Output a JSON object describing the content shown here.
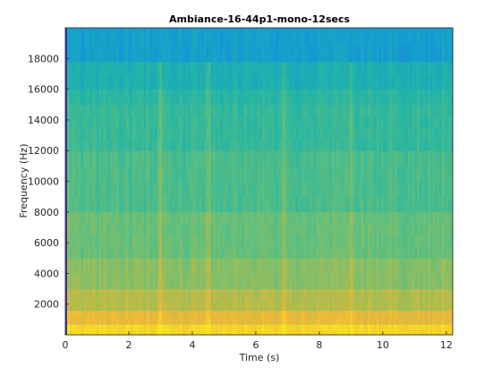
{
  "chart_data": {
    "type": "heatmap",
    "title": "Ambiance-16-44p1-mono-12secs",
    "xlabel": "Time (s)",
    "ylabel": "Frequency (Hz)",
    "xlim": [
      0,
      12.2
    ],
    "ylim": [
      0,
      20000
    ],
    "x_ticks": [
      0,
      2,
      4,
      6,
      8,
      10,
      12
    ],
    "y_ticks": [
      2000,
      4000,
      6000,
      8000,
      10000,
      12000,
      14000,
      16000,
      18000
    ],
    "y_tick_labels": [
      "2000",
      "4000",
      "6000",
      "8000",
      "10000",
      "12000",
      "14000",
      "16000",
      "18000"
    ],
    "colormap": "parula",
    "colormap_colors": [
      "#3e26a8",
      "#2f6ff0",
      "#139ecf",
      "#24b5a5",
      "#62bf7c",
      "#b2bc4c",
      "#efb939",
      "#f7e520"
    ],
    "bands_hz": [
      {
        "from": 0,
        "to": 700,
        "level": 0.95
      },
      {
        "from": 700,
        "to": 1600,
        "level": 0.84
      },
      {
        "from": 1600,
        "to": 3000,
        "level": 0.72
      },
      {
        "from": 3000,
        "to": 5000,
        "level": 0.64
      },
      {
        "from": 5000,
        "to": 8000,
        "level": 0.58
      },
      {
        "from": 8000,
        "to": 12000,
        "level": 0.52
      },
      {
        "from": 12000,
        "to": 15000,
        "level": 0.47
      },
      {
        "from": 15000,
        "to": 16000,
        "level": 0.44
      },
      {
        "from": 16000,
        "to": 17800,
        "level": 0.39
      },
      {
        "from": 17800,
        "to": 20000,
        "level": 0.3
      }
    ],
    "transients_s": [
      0.05,
      2.98,
      4.5,
      6.9,
      9.0
    ],
    "grid": false
  }
}
